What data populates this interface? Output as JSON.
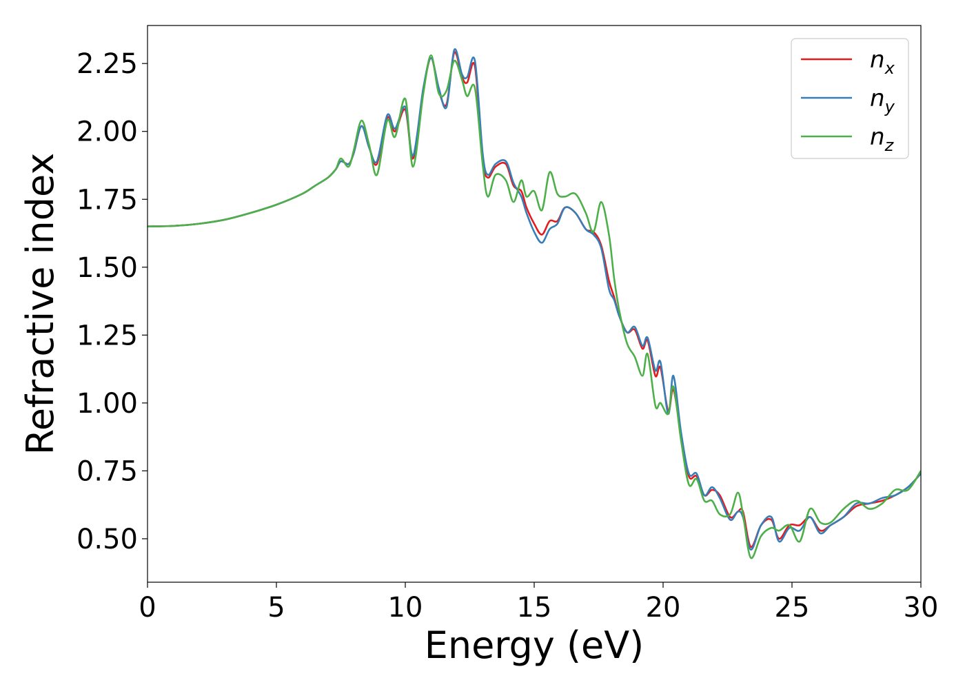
{
  "chart_data": {
    "type": "line",
    "xlabel": "Energy (eV)",
    "ylabel": "Refractive index",
    "xlim": [
      0,
      30
    ],
    "ylim": [
      0.34,
      2.39
    ],
    "xticks": [
      0,
      5,
      10,
      15,
      20,
      25,
      30
    ],
    "xtick_labels": [
      "0",
      "5",
      "10",
      "15",
      "20",
      "25",
      "30"
    ],
    "yticks": [
      0.5,
      0.75,
      1.0,
      1.25,
      1.5,
      1.75,
      2.0,
      2.25
    ],
    "ytick_labels": [
      "0.50",
      "0.75",
      "1.00",
      "1.25",
      "1.50",
      "1.75",
      "2.00",
      "2.25"
    ],
    "grid": false,
    "legend_position": "top-right",
    "series": [
      {
        "name": "n_x",
        "name_base": "n",
        "name_sub": "x",
        "color": "#e41a1c",
        "x": [
          0,
          1,
          2,
          3,
          4,
          5,
          6,
          6.5,
          7,
          7.3,
          7.5,
          7.8,
          8.0,
          8.3,
          8.6,
          8.9,
          9.3,
          9.6,
          10.0,
          10.3,
          10.7,
          11.0,
          11.3,
          11.6,
          11.9,
          12.2,
          12.4,
          12.7,
          13.0,
          13.2,
          13.5,
          13.9,
          14.2,
          14.5,
          14.7,
          15.0,
          15.3,
          15.6,
          15.9,
          16.2,
          16.6,
          17.0,
          17.3,
          17.6,
          17.9,
          18.1,
          18.3,
          18.6,
          18.9,
          19.2,
          19.4,
          19.7,
          19.9,
          20.2,
          20.4,
          20.7,
          21.0,
          21.3,
          21.6,
          21.9,
          22.2,
          22.6,
          22.9,
          23.1,
          23.4,
          23.8,
          24.2,
          24.5,
          24.9,
          25.3,
          25.7,
          26.1,
          26.5,
          27.0,
          27.5,
          28.0,
          28.5,
          29.0,
          29.5,
          30.0
        ],
        "y": [
          1.65,
          1.652,
          1.66,
          1.675,
          1.7,
          1.73,
          1.77,
          1.8,
          1.83,
          1.86,
          1.89,
          1.88,
          1.92,
          2.02,
          1.94,
          1.88,
          2.05,
          2.0,
          2.08,
          1.9,
          2.15,
          2.27,
          2.15,
          2.1,
          2.29,
          2.2,
          2.18,
          2.24,
          1.9,
          1.83,
          1.87,
          1.88,
          1.8,
          1.78,
          1.72,
          1.66,
          1.62,
          1.67,
          1.67,
          1.72,
          1.7,
          1.64,
          1.63,
          1.58,
          1.45,
          1.39,
          1.32,
          1.26,
          1.27,
          1.2,
          1.23,
          1.1,
          1.13,
          0.97,
          1.05,
          0.88,
          0.73,
          0.73,
          0.66,
          0.68,
          0.66,
          0.58,
          0.6,
          0.6,
          0.47,
          0.55,
          0.57,
          0.5,
          0.55,
          0.55,
          0.58,
          0.53,
          0.55,
          0.58,
          0.62,
          0.63,
          0.64,
          0.66,
          0.69,
          0.74
        ]
      },
      {
        "name": "n_y",
        "name_base": "n",
        "name_sub": "y",
        "color": "#377eb8",
        "x": [
          0,
          1,
          2,
          3,
          4,
          5,
          6,
          6.5,
          7,
          7.3,
          7.5,
          7.8,
          8.0,
          8.3,
          8.6,
          8.9,
          9.3,
          9.6,
          10.0,
          10.3,
          10.7,
          11.0,
          11.3,
          11.6,
          11.9,
          12.2,
          12.4,
          12.7,
          13.0,
          13.2,
          13.5,
          13.9,
          14.2,
          14.5,
          14.7,
          15.0,
          15.3,
          15.6,
          15.9,
          16.2,
          16.6,
          17.0,
          17.3,
          17.6,
          17.9,
          18.1,
          18.3,
          18.6,
          18.9,
          19.2,
          19.4,
          19.7,
          19.9,
          20.2,
          20.4,
          20.7,
          21.0,
          21.3,
          21.6,
          21.9,
          22.2,
          22.6,
          22.9,
          23.1,
          23.4,
          23.8,
          24.2,
          24.5,
          24.9,
          25.3,
          25.7,
          26.1,
          26.5,
          27.0,
          27.5,
          28.0,
          28.5,
          29.0,
          29.5,
          30.0
        ],
        "y": [
          1.65,
          1.652,
          1.66,
          1.675,
          1.7,
          1.73,
          1.77,
          1.8,
          1.83,
          1.86,
          1.89,
          1.88,
          1.92,
          2.02,
          1.94,
          1.89,
          2.06,
          2.01,
          2.09,
          1.91,
          2.16,
          2.27,
          2.16,
          2.09,
          2.3,
          2.21,
          2.2,
          2.26,
          1.92,
          1.84,
          1.88,
          1.89,
          1.81,
          1.76,
          1.7,
          1.63,
          1.59,
          1.64,
          1.66,
          1.72,
          1.7,
          1.64,
          1.62,
          1.57,
          1.42,
          1.38,
          1.32,
          1.26,
          1.28,
          1.21,
          1.24,
          1.12,
          1.15,
          0.96,
          1.1,
          0.89,
          0.74,
          0.74,
          0.66,
          0.69,
          0.65,
          0.57,
          0.6,
          0.58,
          0.46,
          0.55,
          0.58,
          0.49,
          0.54,
          0.53,
          0.58,
          0.52,
          0.55,
          0.58,
          0.63,
          0.63,
          0.65,
          0.66,
          0.69,
          0.74
        ]
      },
      {
        "name": "n_z",
        "name_base": "n",
        "name_sub": "z",
        "color": "#4daf4a",
        "x": [
          0,
          1,
          2,
          3,
          4,
          5,
          6,
          6.5,
          7,
          7.3,
          7.5,
          7.8,
          8.0,
          8.3,
          8.6,
          8.9,
          9.3,
          9.6,
          10.0,
          10.3,
          10.7,
          11.0,
          11.3,
          11.6,
          11.9,
          12.2,
          12.4,
          12.7,
          13.0,
          13.2,
          13.5,
          13.9,
          14.2,
          14.5,
          14.7,
          15.0,
          15.3,
          15.6,
          15.9,
          16.2,
          16.6,
          17.0,
          17.3,
          17.6,
          17.9,
          18.1,
          18.3,
          18.6,
          18.9,
          19.2,
          19.4,
          19.7,
          19.9,
          20.2,
          20.4,
          20.7,
          21.0,
          21.3,
          21.6,
          21.9,
          22.2,
          22.6,
          22.9,
          23.1,
          23.4,
          23.8,
          24.2,
          24.5,
          24.9,
          25.3,
          25.7,
          26.1,
          26.5,
          27.0,
          27.5,
          28.0,
          28.5,
          29.0,
          29.5,
          30.0
        ],
        "y": [
          1.65,
          1.652,
          1.66,
          1.675,
          1.7,
          1.73,
          1.77,
          1.8,
          1.83,
          1.86,
          1.9,
          1.87,
          1.93,
          2.04,
          1.95,
          1.84,
          2.04,
          1.98,
          2.12,
          1.87,
          2.14,
          2.28,
          2.14,
          2.15,
          2.26,
          2.19,
          2.13,
          2.16,
          1.88,
          1.76,
          1.84,
          1.82,
          1.74,
          1.82,
          1.76,
          1.78,
          1.71,
          1.85,
          1.77,
          1.76,
          1.77,
          1.7,
          1.63,
          1.74,
          1.62,
          1.46,
          1.34,
          1.22,
          1.17,
          1.1,
          1.18,
          0.99,
          1.0,
          0.96,
          1.06,
          0.86,
          0.7,
          0.72,
          0.64,
          0.64,
          0.59,
          0.59,
          0.67,
          0.59,
          0.43,
          0.51,
          0.54,
          0.53,
          0.55,
          0.49,
          0.61,
          0.56,
          0.56,
          0.61,
          0.64,
          0.61,
          0.63,
          0.68,
          0.68,
          0.75
        ]
      }
    ]
  }
}
